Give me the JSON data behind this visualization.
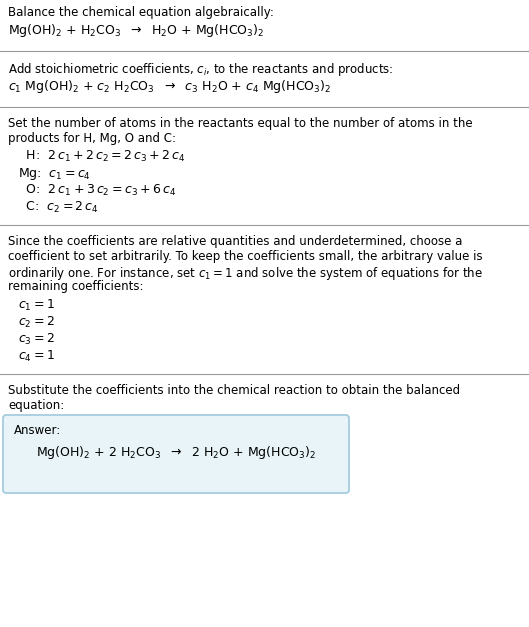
{
  "bg_color": "#ffffff",
  "text_color": "#000000",
  "answer_box_bg": "#e8f4f8",
  "answer_box_border": "#a0c8de",
  "figsize": [
    5.29,
    6.27
  ],
  "dpi": 100,
  "section1_title": "Balance the chemical equation algebraically:",
  "section1_eq": "Mg(OH)$_2$ + H$_2$CO$_3$  $\\rightarrow$  H$_2$O + Mg(HCO$_3$)$_2$",
  "section2_title": "Add stoichiometric coefficients, $c_i$, to the reactants and products:",
  "section2_eq": "$c_1$ Mg(OH)$_2$ + $c_2$ H$_2$CO$_3$  $\\rightarrow$  $c_3$ H$_2$O + $c_4$ Mg(HCO$_3$)$_2$",
  "section3_title_line1": "Set the number of atoms in the reactants equal to the number of atoms in the",
  "section3_title_line2": "products for H, Mg, O and C:",
  "section3_lines": [
    [
      "  H:",
      "  $2\\,c_1 + 2\\,c_2 = 2\\,c_3 + 2\\,c_4$"
    ],
    [
      "Mg:",
      "  $c_1 = c_4$"
    ],
    [
      "  O:",
      "  $2\\,c_1 + 3\\,c_2 = c_3 + 6\\,c_4$"
    ],
    [
      "  C:",
      "  $c_2 = 2\\,c_4$"
    ]
  ],
  "section4_title_lines": [
    "Since the coefficients are relative quantities and underdetermined, choose a",
    "coefficient to set arbitrarily. To keep the coefficients small, the arbitrary value is",
    "ordinarily one. For instance, set $c_1 = 1$ and solve the system of equations for the",
    "remaining coefficients:"
  ],
  "section4_lines": [
    "$c_1 = 1$",
    "$c_2 = 2$",
    "$c_3 = 2$",
    "$c_4 = 1$"
  ],
  "section5_title_line1": "Substitute the coefficients into the chemical reaction to obtain the balanced",
  "section5_title_line2": "equation:",
  "answer_label": "Answer:",
  "answer_eq": "Mg(OH)$_2$ + 2 H$_2$CO$_3$  $\\rightarrow$  2 H$_2$O + Mg(HCO$_3$)$_2$"
}
